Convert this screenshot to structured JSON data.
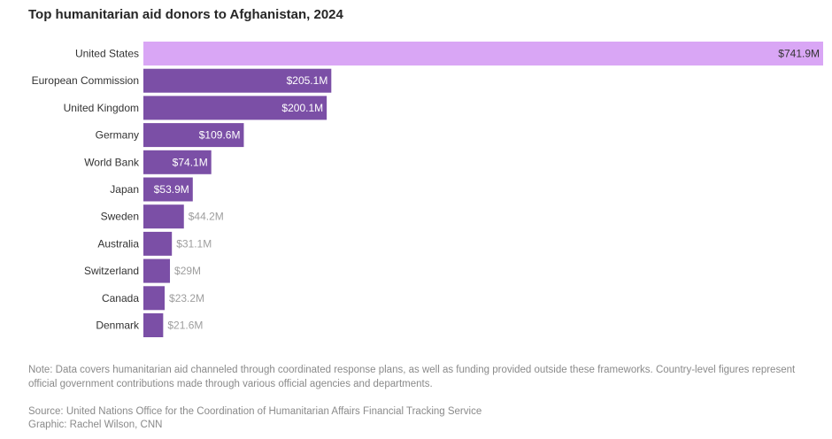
{
  "chart_data": {
    "type": "bar",
    "orientation": "horizontal",
    "title": "Top humanitarian aid donors to Afghanistan, 2024",
    "categories": [
      "United States",
      "European Commission",
      "United Kingdom",
      "Germany",
      "World Bank",
      "Japan",
      "Sweden",
      "Australia",
      "Switzerland",
      "Canada",
      "Denmark"
    ],
    "values": [
      741.9,
      205.1,
      200.1,
      109.6,
      74.1,
      53.9,
      44.2,
      31.1,
      29,
      23.2,
      21.6
    ],
    "value_labels": [
      "$741.9M",
      "$205.1M",
      "$200.1M",
      "$109.6M",
      "$74.1M",
      "$53.9M",
      "$44.2M",
      "$31.1M",
      "$29M",
      "$23.2M",
      "$21.6M"
    ],
    "xlim": [
      0,
      741.9
    ],
    "grid": false,
    "colors": {
      "highlight_bar": "#d9a6f5",
      "bar": "#7b4fa6",
      "label_inside": "#ffffff",
      "label_outside": "#9e9e9e",
      "category_label": "#333333"
    }
  },
  "footer": {
    "note": "Note: Data covers humanitarian aid channeled through coordinated response plans, as well as funding provided outside these frameworks. Country-level figures represent official government contributions made through various official agencies and departments.",
    "source": "Source: United Nations Office for the Coordination of Humanitarian Affairs Financial Tracking Service",
    "credit": "Graphic: Rachel Wilson, CNN"
  }
}
